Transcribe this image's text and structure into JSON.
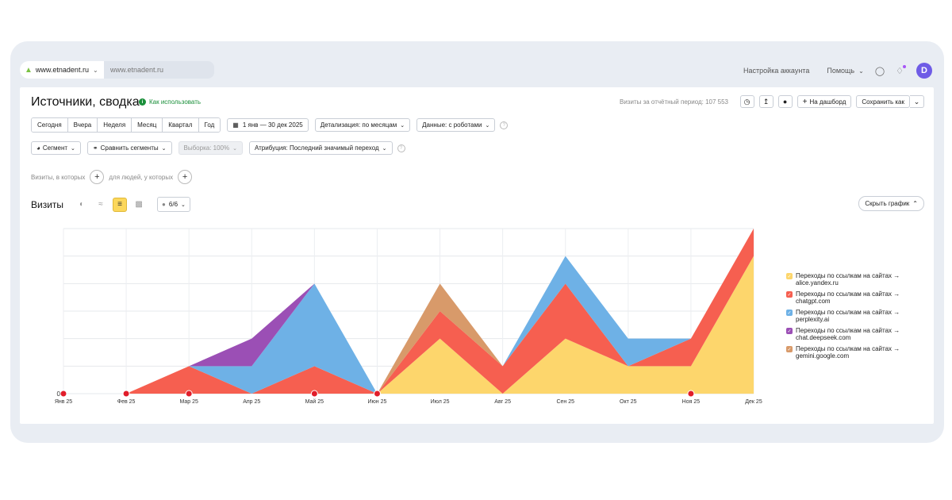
{
  "topbar": {
    "site_selector": "www.etnadent.ru",
    "site_input": "www.etnadent.ru",
    "account_settings": "Настройка аккаунта",
    "help": "Помощь",
    "avatar_letter": "D"
  },
  "header": {
    "title": "Источники, сводка",
    "howto": "Как использовать",
    "visits_total": "Визиты за отчётный период: 107 553",
    "to_dashboard": "На дашборд",
    "save_as": "Сохранить как"
  },
  "periods": [
    "Сегодня",
    "Вчера",
    "Неделя",
    "Месяц",
    "Квартал",
    "Год"
  ],
  "toolbar": {
    "date_range": "1 янв — 30 дек 2025",
    "detalization": "Детализация: по месяцам",
    "data": "Данные: с роботами",
    "segment": "Сегмент",
    "compare": "Сравнить сегменты",
    "sample": "Выборка: 100%",
    "attribution": "Атрибуция: Последний значимый переход"
  },
  "filters": {
    "visits_where": "Визиты, в которых",
    "for_people": "для людей, у которых"
  },
  "chart_header": {
    "label": "Визиты",
    "series_count": "6/6",
    "hide_chart": "Скрыть график"
  },
  "chart_data": {
    "type": "area",
    "stacked": true,
    "x": [
      "Янв 25",
      "Фев 25",
      "Мар 25",
      "Апр 25",
      "Май 25",
      "Июн 25",
      "Июл 25",
      "Авг 25",
      "Сен 25",
      "Окт 25",
      "Ноя 25",
      "Дек 25"
    ],
    "y_tick_label": "0",
    "series": [
      {
        "name": "Переходы по ссылкам на сайтах → alice.yandex.ru",
        "color": "#fdd66c",
        "values": [
          0,
          0,
          0,
          0,
          0,
          0,
          2,
          0,
          2,
          1,
          1,
          5
        ]
      },
      {
        "name": "Переходы по ссылкам на сайтах → chatgpt.com",
        "color": "#f65f50",
        "values": [
          0,
          0,
          1,
          0,
          1,
          0,
          1,
          1,
          2,
          0,
          1,
          1
        ]
      },
      {
        "name": "Переходы по ссылкам на сайтах → perplexity.ai",
        "color": "#6eb1e6",
        "values": [
          0,
          0,
          0,
          1,
          3,
          0,
          0,
          0,
          1,
          1,
          0,
          0
        ]
      },
      {
        "name": "Переходы по ссылкам на сайтах → chat.deepseek.com",
        "color": "#9b4fb5",
        "values": [
          0,
          0,
          0,
          1,
          0,
          0,
          0,
          0,
          0,
          0,
          0,
          0
        ]
      },
      {
        "name": "Переходы по ссылкам на сайтах → gemini.google.com",
        "color": "#d89a6a",
        "values": [
          0,
          0,
          0,
          0,
          0,
          0,
          1,
          0,
          0,
          0,
          0,
          0
        ]
      }
    ],
    "ylim": [
      0,
      6
    ],
    "grid": true,
    "legend": "right",
    "markers": [
      "Янв 25",
      "Фев 25",
      "Мар 25",
      "Май 25",
      "Июн 25",
      "Ноя 25"
    ]
  }
}
